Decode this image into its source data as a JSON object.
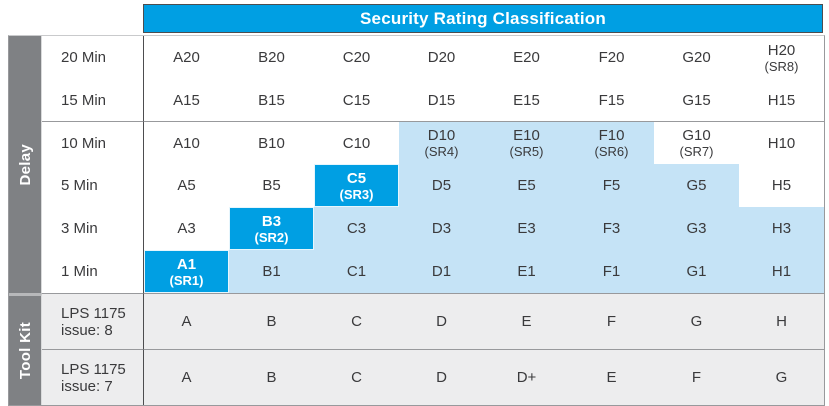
{
  "header": {
    "title": "Security Rating Classification"
  },
  "bands": {
    "delay": "Delay",
    "toolkit": "Tool Kit"
  },
  "colors": {
    "brand_blue": "#009FE3",
    "light_blue": "#C5E3F6",
    "band_gray": "#7F8184",
    "toolkit_cell_bg": "#EDEDEE",
    "border_dark": "#4D4D4F",
    "border_gray": "#98999C",
    "text_dark": "#3A3A3C"
  },
  "table": {
    "rows": [
      {
        "label": "20 Min",
        "section": "delay",
        "separator_above": false,
        "cells": [
          {
            "text": "A20",
            "bg": "white"
          },
          {
            "text": "B20",
            "bg": "white"
          },
          {
            "text": "C20",
            "bg": "white"
          },
          {
            "text": "D20",
            "bg": "white"
          },
          {
            "text": "E20",
            "bg": "white"
          },
          {
            "text": "F20",
            "bg": "white"
          },
          {
            "text": "G20",
            "bg": "white"
          },
          {
            "text": "H20",
            "sub": "(SR8)",
            "bg": "white"
          }
        ]
      },
      {
        "label": "15 Min",
        "section": "delay",
        "separator_above": false,
        "cells": [
          {
            "text": "A15",
            "bg": "white"
          },
          {
            "text": "B15",
            "bg": "white"
          },
          {
            "text": "C15",
            "bg": "white"
          },
          {
            "text": "D15",
            "bg": "white"
          },
          {
            "text": "E15",
            "bg": "white"
          },
          {
            "text": "F15",
            "bg": "white"
          },
          {
            "text": "G15",
            "bg": "white"
          },
          {
            "text": "H15",
            "bg": "white"
          }
        ]
      },
      {
        "label": "10 Min",
        "section": "delay",
        "separator_above": true,
        "cells": [
          {
            "text": "A10",
            "bg": "white"
          },
          {
            "text": "B10",
            "bg": "white"
          },
          {
            "text": "C10",
            "bg": "white"
          },
          {
            "text": "D10",
            "sub": "(SR4)",
            "bg": "light"
          },
          {
            "text": "E10",
            "sub": "(SR5)",
            "bg": "light"
          },
          {
            "text": "F10",
            "sub": "(SR6)",
            "bg": "light"
          },
          {
            "text": "G10",
            "sub": "(SR7)",
            "bg": "white"
          },
          {
            "text": "H10",
            "bg": "white"
          }
        ]
      },
      {
        "label": "5 Min",
        "section": "delay",
        "separator_above": false,
        "cells": [
          {
            "text": "A5",
            "bg": "white"
          },
          {
            "text": "B5",
            "bg": "white"
          },
          {
            "text": "C5",
            "sub": "(SR3)",
            "bg": "bright"
          },
          {
            "text": "D5",
            "bg": "light"
          },
          {
            "text": "E5",
            "bg": "light"
          },
          {
            "text": "F5",
            "bg": "light"
          },
          {
            "text": "G5",
            "bg": "light"
          },
          {
            "text": "H5",
            "bg": "white"
          }
        ]
      },
      {
        "label": "3 Min",
        "section": "delay",
        "separator_above": false,
        "cells": [
          {
            "text": "A3",
            "bg": "white"
          },
          {
            "text": "B3",
            "sub": "(SR2)",
            "bg": "bright"
          },
          {
            "text": "C3",
            "bg": "light"
          },
          {
            "text": "D3",
            "bg": "light"
          },
          {
            "text": "E3",
            "bg": "light"
          },
          {
            "text": "F3",
            "bg": "light"
          },
          {
            "text": "G3",
            "bg": "light"
          },
          {
            "text": "H3",
            "bg": "light"
          }
        ]
      },
      {
        "label": "1 Min",
        "section": "delay",
        "separator_above": false,
        "cells": [
          {
            "text": "A1",
            "sub": "(SR1)",
            "bg": "bright"
          },
          {
            "text": "B1",
            "bg": "light"
          },
          {
            "text": "C1",
            "bg": "light"
          },
          {
            "text": "D1",
            "bg": "light"
          },
          {
            "text": "E1",
            "bg": "light"
          },
          {
            "text": "F1",
            "bg": "light"
          },
          {
            "text": "G1",
            "bg": "light"
          },
          {
            "text": "H1",
            "bg": "light"
          }
        ]
      },
      {
        "label": "LPS 1175\nissue: 8",
        "section": "toolkit",
        "separator_above": true,
        "cells": [
          {
            "text": "A",
            "bg": "gray"
          },
          {
            "text": "B",
            "bg": "gray"
          },
          {
            "text": "C",
            "bg": "gray"
          },
          {
            "text": "D",
            "bg": "gray"
          },
          {
            "text": "E",
            "bg": "gray"
          },
          {
            "text": "F",
            "bg": "gray"
          },
          {
            "text": "G",
            "bg": "gray"
          },
          {
            "text": "H",
            "bg": "gray"
          }
        ]
      },
      {
        "label": "LPS 1175\nissue: 7",
        "section": "toolkit",
        "separator_above": true,
        "cells": [
          {
            "text": "A",
            "bg": "gray"
          },
          {
            "text": "B",
            "bg": "gray"
          },
          {
            "text": "C",
            "bg": "gray"
          },
          {
            "text": "D",
            "bg": "gray"
          },
          {
            "text": "D+",
            "bg": "gray"
          },
          {
            "text": "E",
            "bg": "gray"
          },
          {
            "text": "F",
            "bg": "gray"
          },
          {
            "text": "G",
            "bg": "gray"
          }
        ]
      }
    ]
  }
}
